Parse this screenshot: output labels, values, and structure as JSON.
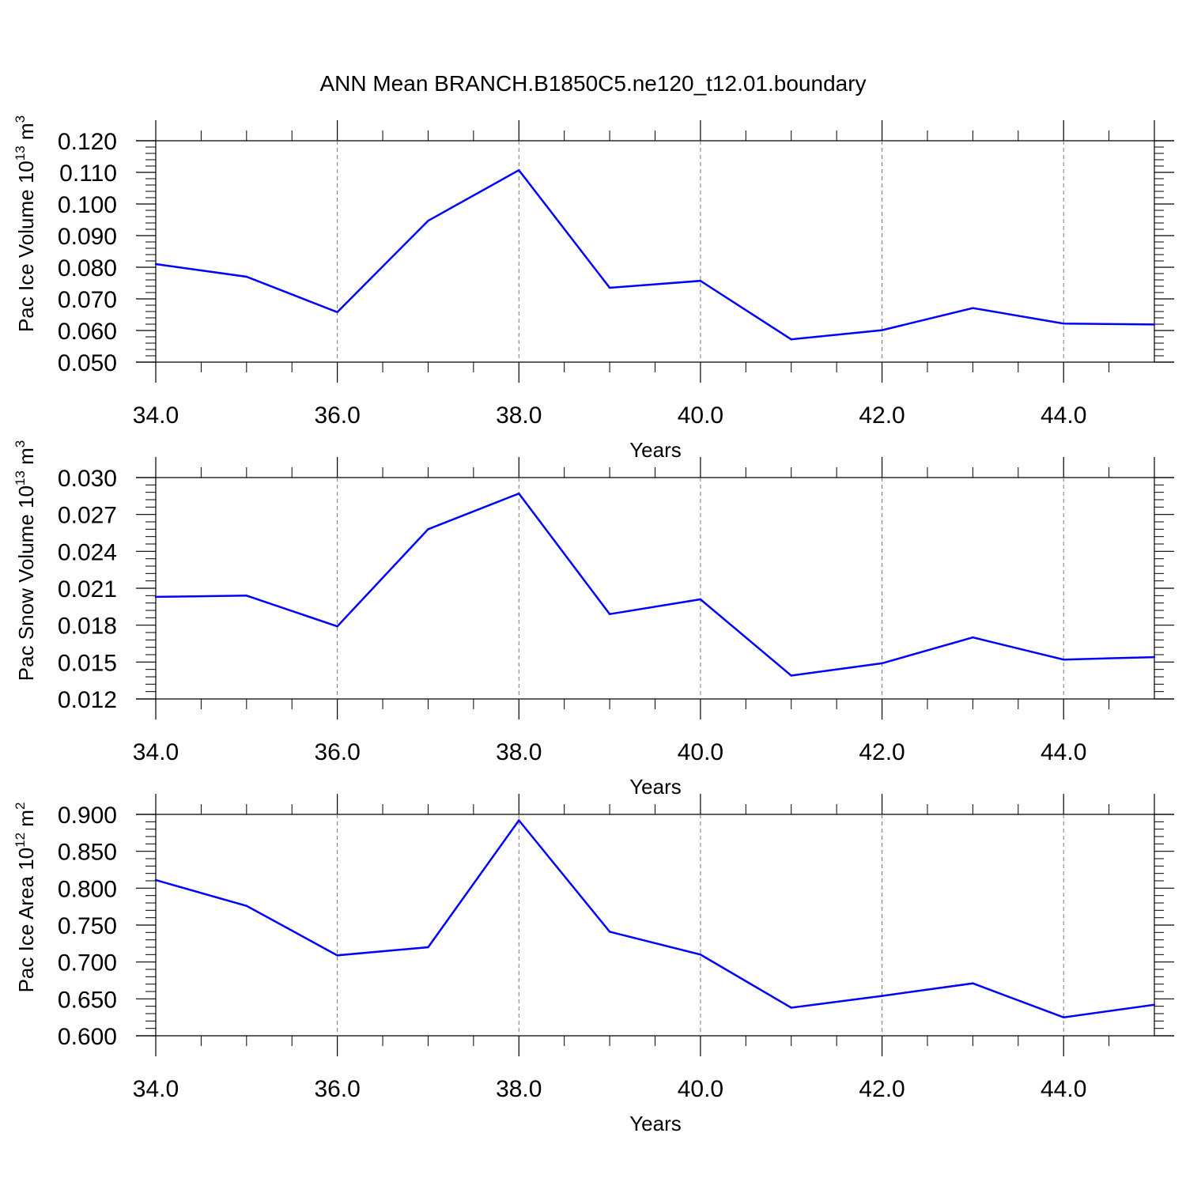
{
  "title": "ANN Mean BRANCH.B1850C5.ne120_t12.01.boundary",
  "colors": {
    "line": "#0000ff",
    "axis": "#000000",
    "grid": "#777777"
  },
  "chart_data": [
    {
      "type": "line",
      "ylabel_prefix": "Pac Ice Volume 10",
      "ylabel_exp": "13",
      "ylabel_unit": " m",
      "ylabel_unit_exp": "3",
      "xlabel": "Years",
      "xlim": [
        34,
        45
      ],
      "ylim": [
        0.05,
        0.12
      ],
      "xticks": [
        "34.0",
        "36.0",
        "38.0",
        "40.0",
        "42.0",
        "44.0"
      ],
      "yticks": [
        "0.050",
        "0.060",
        "0.070",
        "0.080",
        "0.090",
        "0.100",
        "0.110",
        "0.120"
      ],
      "grid": "vertical dashed at major x ticks",
      "x": [
        34,
        35,
        36,
        37,
        38,
        39,
        40,
        41,
        42,
        43,
        44,
        45
      ],
      "series": [
        {
          "values": [
            0.081,
            0.077,
            0.0658,
            0.0947,
            0.1107,
            0.0735,
            0.0757,
            0.0572,
            0.0601,
            0.0671,
            0.0622,
            0.0619
          ]
        }
      ]
    },
    {
      "type": "line",
      "ylabel_prefix": "Pac Snow Volume 10",
      "ylabel_exp": "13",
      "ylabel_unit": " m",
      "ylabel_unit_exp": "3",
      "xlabel": "Years",
      "xlim": [
        34,
        45
      ],
      "ylim": [
        0.012,
        0.03
      ],
      "xticks": [
        "34.0",
        "36.0",
        "38.0",
        "40.0",
        "42.0",
        "44.0"
      ],
      "yticks": [
        "0.012",
        "0.015",
        "0.018",
        "0.021",
        "0.024",
        "0.027",
        "0.030"
      ],
      "grid": "vertical dashed at major x ticks",
      "x": [
        34,
        35,
        36,
        37,
        38,
        39,
        40,
        41,
        42,
        43,
        44,
        45
      ],
      "series": [
        {
          "values": [
            0.0203,
            0.0204,
            0.0179,
            0.0258,
            0.0287,
            0.0189,
            0.0201,
            0.0139,
            0.0149,
            0.017,
            0.0152,
            0.0154
          ]
        }
      ]
    },
    {
      "type": "line",
      "ylabel_prefix": "Pac Ice Area 10",
      "ylabel_exp": "12",
      "ylabel_unit": " m",
      "ylabel_unit_exp": "2",
      "xlabel": "Years",
      "xlim": [
        34,
        45
      ],
      "ylim": [
        0.6,
        0.9
      ],
      "xticks": [
        "34.0",
        "36.0",
        "38.0",
        "40.0",
        "42.0",
        "44.0"
      ],
      "yticks": [
        "0.600",
        "0.650",
        "0.700",
        "0.750",
        "0.800",
        "0.850",
        "0.900"
      ],
      "grid": "vertical dashed at major x ticks",
      "x": [
        34,
        35,
        36,
        37,
        38,
        39,
        40,
        41,
        42,
        43,
        44,
        45
      ],
      "series": [
        {
          "values": [
            0.811,
            0.776,
            0.709,
            0.72,
            0.892,
            0.741,
            0.71,
            0.638,
            0.654,
            0.671,
            0.625,
            0.642
          ]
        }
      ]
    }
  ]
}
